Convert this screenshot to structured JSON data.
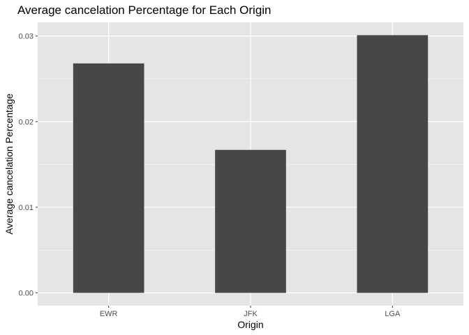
{
  "chart_data": {
    "type": "bar",
    "title": "Average cancelation Percentage for Each Origin",
    "xlabel": "Origin",
    "ylabel": "Average cancelation Percentage",
    "categories": [
      "EWR",
      "JFK",
      "LGA"
    ],
    "values": [
      0.0268,
      0.0167,
      0.0301
    ],
    "ylim": [
      -0.0015,
      0.0316
    ],
    "yticks": [
      0.0,
      0.01,
      0.02,
      0.03
    ],
    "ytick_labels": [
      "0.00",
      "0.01",
      "0.02",
      "0.03"
    ],
    "grid": true,
    "legend": "none",
    "colors": {
      "panel_background": "#e5e5e5",
      "grid_major": "#ffffff",
      "bar_fill": "#474747",
      "tick_text": "#4d4d4d",
      "tick_mark": "#333333"
    }
  }
}
